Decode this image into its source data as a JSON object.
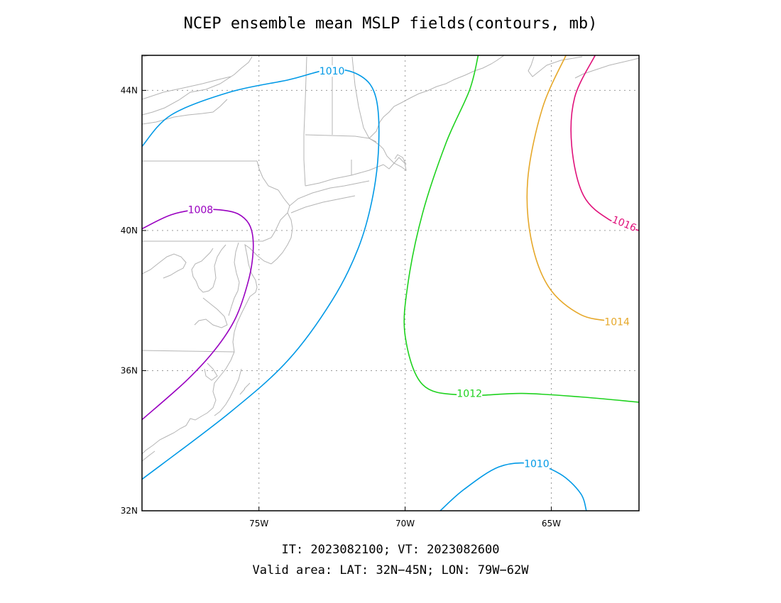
{
  "title": "NCEP ensemble mean MSLP fields(contours, mb)",
  "footer": {
    "line1": "IT: 2023082100; VT: 2023082600",
    "line2": "Valid area: LAT: 32N−45N; LON: 79W−62W"
  },
  "colors": {
    "c1008": "#9900c0",
    "c1010": "#0099e6",
    "c1012": "#1ed21e",
    "c1014": "#e6a82a",
    "c1016": "#e0107a",
    "coast": "#b4b4b4",
    "grid": "#9a9a9a"
  },
  "chart_data": {
    "type": "contour",
    "lon_range": [
      -79,
      -62
    ],
    "lat_range": [
      32,
      45
    ],
    "x_ticks": [
      {
        "lon": -75,
        "label": "75W"
      },
      {
        "lon": -70,
        "label": "70W"
      },
      {
        "lon": -65,
        "label": "65W"
      }
    ],
    "y_ticks": [
      {
        "lat": 44,
        "label": "44N"
      },
      {
        "lat": 40,
        "label": "40N"
      },
      {
        "lat": 36,
        "label": "36N"
      },
      {
        "lat": 32,
        "label": "32N"
      }
    ],
    "grid": true,
    "contours": [
      {
        "level": 1008,
        "label": "1008",
        "color": "#9900c0",
        "points": [
          [
            -79,
            40.05
          ],
          [
            -78,
            40.45
          ],
          [
            -77,
            40.6
          ],
          [
            -76,
            40.55
          ],
          [
            -75.5,
            40.35
          ],
          [
            -75.25,
            40.0
          ],
          [
            -75.2,
            39.4
          ],
          [
            -75.35,
            38.6
          ],
          [
            -75.8,
            37.5
          ],
          [
            -76.5,
            36.6
          ],
          [
            -77.5,
            35.7
          ],
          [
            -79,
            34.6
          ]
        ]
      },
      {
        "level": 1010,
        "label": "1010",
        "color": "#0099e6",
        "points": [
          [
            -79,
            42.4
          ],
          [
            -78,
            43.3
          ],
          [
            -76,
            43.95
          ],
          [
            -74,
            44.3
          ],
          [
            -72.5,
            44.6
          ],
          [
            -71.5,
            44.4
          ],
          [
            -71.0,
            43.8
          ],
          [
            -70.9,
            42.5
          ],
          [
            -71.1,
            41.0
          ],
          [
            -71.6,
            39.5
          ],
          [
            -72.5,
            38.0
          ],
          [
            -74.0,
            36.3
          ],
          [
            -76.0,
            34.8
          ],
          [
            -79,
            32.9
          ]
        ]
      },
      {
        "level": 1010,
        "label": "1010",
        "color": "#0099e6",
        "points": [
          [
            -68.8,
            32.0
          ],
          [
            -68.0,
            32.6
          ],
          [
            -66.8,
            33.25
          ],
          [
            -65.7,
            33.35
          ],
          [
            -64.7,
            33.05
          ],
          [
            -64.0,
            32.5
          ],
          [
            -63.8,
            32.0
          ]
        ]
      },
      {
        "level": 1012,
        "label": "1012",
        "color": "#1ed21e",
        "points": [
          [
            -67.5,
            45.0
          ],
          [
            -67.8,
            44.0
          ],
          [
            -68.6,
            42.5
          ],
          [
            -69.4,
            40.5
          ],
          [
            -69.9,
            38.5
          ],
          [
            -70.0,
            37.0
          ],
          [
            -69.4,
            35.6
          ],
          [
            -68.0,
            35.3
          ],
          [
            -66.0,
            35.35
          ],
          [
            -64.0,
            35.25
          ],
          [
            -62.0,
            35.1
          ]
        ]
      },
      {
        "level": 1014,
        "label": "1014",
        "color": "#e6a82a",
        "points": [
          [
            -64.5,
            45.0
          ],
          [
            -65.3,
            43.5
          ],
          [
            -65.8,
            41.5
          ],
          [
            -65.7,
            39.8
          ],
          [
            -65.1,
            38.4
          ],
          [
            -64.0,
            37.6
          ],
          [
            -62.8,
            37.4
          ]
        ]
      },
      {
        "level": 1016,
        "label": "1016",
        "color": "#e0107a",
        "points": [
          [
            -63.5,
            45.0
          ],
          [
            -64.2,
            43.8
          ],
          [
            -64.3,
            42.4
          ],
          [
            -63.9,
            41.0
          ],
          [
            -63.0,
            40.3
          ],
          [
            -62.0,
            40.0
          ]
        ]
      }
    ],
    "contour_labels": [
      {
        "text": "1008",
        "lon": -77.0,
        "lat": 40.6,
        "color": "#9900c0",
        "rotate": 0
      },
      {
        "text": "1010",
        "lon": -72.5,
        "lat": 44.55,
        "color": "#0099e6",
        "rotate": 0
      },
      {
        "text": "1012",
        "lon": -67.8,
        "lat": 35.35,
        "color": "#1ed21e",
        "rotate": 0
      },
      {
        "text": "1014",
        "lon": -62.75,
        "lat": 37.4,
        "color": "#e6a82a",
        "rotate": 0
      },
      {
        "text": "1016",
        "lon": -62.5,
        "lat": 40.2,
        "color": "#e0107a",
        "rotate": 22
      },
      {
        "text": "1010",
        "lon": -65.5,
        "lat": 33.35,
        "color": "#0099e6",
        "rotate": 0
      }
    ]
  }
}
